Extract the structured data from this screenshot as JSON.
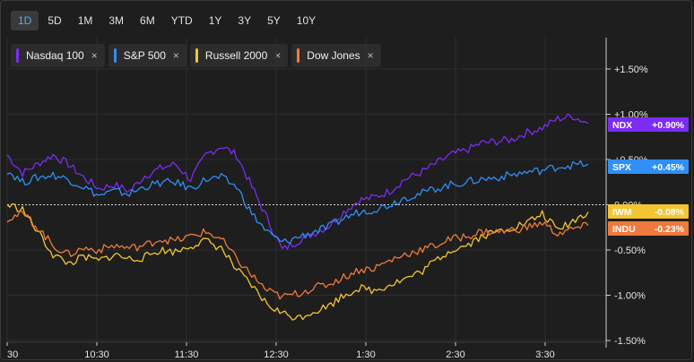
{
  "range_buttons": [
    "1D",
    "5D",
    "1M",
    "3M",
    "6M",
    "YTD",
    "1Y",
    "3Y",
    "5Y",
    "10Y"
  ],
  "active_range": "1D",
  "legend": [
    {
      "label": "Nasdaq 100",
      "color": "#7b2cf5",
      "close": "×"
    },
    {
      "label": "S&P 500",
      "color": "#2f8ff7",
      "close": "×"
    },
    {
      "label": "Russell 2000",
      "color": "#f5c531",
      "close": "×"
    },
    {
      "label": "Dow Jones",
      "color": "#f07a3c",
      "close": "×"
    }
  ],
  "chart_data": {
    "type": "line",
    "x_ticks": [
      "30",
      "10:30",
      "11:30",
      "12:30",
      "1:30",
      "2:30",
      "3:30"
    ],
    "y_ticks": [
      "+1.50%",
      "+1.00%",
      "+0.50%",
      "0.00%",
      "-0.50%",
      "-1.00%",
      "-1.50%"
    ],
    "ylim": [
      -1.5,
      1.5
    ],
    "baseline": 0,
    "grid": true,
    "series": [
      {
        "name": "Nasdaq 100",
        "ticker": "NDX",
        "last": "+0.90%",
        "color": "#7b2cf5",
        "values": [
          0.55,
          0.35,
          0.45,
          0.55,
          0.45,
          0.3,
          0.18,
          0.22,
          0.15,
          0.32,
          0.4,
          0.45,
          0.28,
          0.55,
          0.65,
          0.55,
          0.2,
          -0.15,
          -0.5,
          -0.4,
          -0.32,
          -0.24,
          -0.08,
          0.05,
          0.08,
          0.15,
          0.28,
          0.35,
          0.45,
          0.55,
          0.6,
          0.68,
          0.7,
          0.72,
          0.8,
          0.85,
          0.95,
          0.98,
          0.9
        ]
      },
      {
        "name": "S&P 500",
        "ticker": "SPX",
        "last": "+0.45%",
        "color": "#2f8ff7",
        "values": [
          0.38,
          0.25,
          0.3,
          0.33,
          0.28,
          0.2,
          0.1,
          0.15,
          0.12,
          0.2,
          0.24,
          0.25,
          0.18,
          0.28,
          0.3,
          0.2,
          -0.1,
          -0.3,
          -0.42,
          -0.36,
          -0.3,
          -0.25,
          -0.15,
          -0.08,
          -0.05,
          0.0,
          0.08,
          0.12,
          0.18,
          0.22,
          0.25,
          0.28,
          0.3,
          0.33,
          0.36,
          0.38,
          0.42,
          0.44,
          0.45
        ]
      },
      {
        "name": "Russell 2000",
        "ticker": "IWM",
        "last": "-0.08%",
        "color": "#f5c531",
        "values": [
          0.0,
          -0.05,
          -0.3,
          -0.55,
          -0.65,
          -0.58,
          -0.62,
          -0.55,
          -0.6,
          -0.58,
          -0.5,
          -0.52,
          -0.45,
          -0.4,
          -0.48,
          -0.72,
          -0.9,
          -1.1,
          -1.2,
          -1.25,
          -1.18,
          -1.12,
          -1.0,
          -0.92,
          -0.95,
          -0.88,
          -0.82,
          -0.75,
          -0.62,
          -0.5,
          -0.45,
          -0.35,
          -0.3,
          -0.25,
          -0.2,
          -0.1,
          -0.28,
          -0.18,
          -0.08
        ]
      },
      {
        "name": "Dow Jones",
        "ticker": "INDU",
        "last": "-0.23%",
        "color": "#f07a3c",
        "values": [
          -0.15,
          -0.1,
          -0.25,
          -0.45,
          -0.55,
          -0.48,
          -0.5,
          -0.45,
          -0.48,
          -0.45,
          -0.38,
          -0.4,
          -0.35,
          -0.3,
          -0.38,
          -0.6,
          -0.78,
          -0.95,
          -1.02,
          -0.98,
          -0.92,
          -0.88,
          -0.8,
          -0.72,
          -0.7,
          -0.62,
          -0.55,
          -0.5,
          -0.45,
          -0.38,
          -0.35,
          -0.3,
          -0.3,
          -0.28,
          -0.25,
          -0.2,
          -0.32,
          -0.27,
          -0.23
        ]
      }
    ]
  }
}
